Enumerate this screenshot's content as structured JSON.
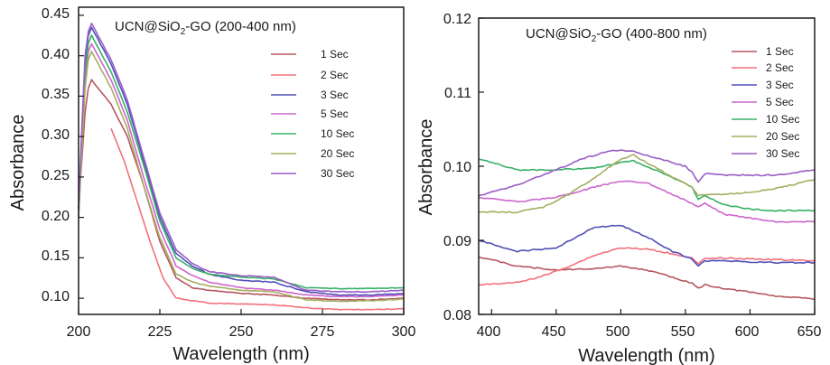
{
  "chart_data": [
    {
      "type": "line",
      "title_main": "UCN@SiO",
      "title_sub": "2",
      "title_tail": "-GO (200-400 nm)",
      "xlabel": "Wavelength (nm)",
      "ylabel": "Absorbance",
      "xlim": [
        200,
        300
      ],
      "ylim": [
        0.08,
        0.46
      ],
      "xticks": [
        200,
        225,
        250,
        275,
        300
      ],
      "yticks": [
        0.1,
        0.15,
        0.2,
        0.25,
        0.3,
        0.35,
        0.4,
        0.45
      ],
      "xtick_labels": [
        "200",
        "225",
        "250",
        "275",
        "300"
      ],
      "ytick_labels": [
        "0.10",
        "0.15",
        "0.20",
        "0.25",
        "0.30",
        "0.35",
        "0.40",
        "0.45"
      ],
      "legend_position": "top-right",
      "grid": false,
      "series": [
        {
          "name": "1 Sec",
          "color": "#b5575f",
          "x": [
            200,
            201,
            202,
            203,
            204,
            206,
            210,
            215,
            220,
            225,
            230,
            235,
            240,
            250,
            260,
            270,
            280,
            290,
            300
          ],
          "y": [
            0.22,
            0.27,
            0.33,
            0.36,
            0.37,
            0.36,
            0.34,
            0.3,
            0.24,
            0.17,
            0.125,
            0.113,
            0.11,
            0.106,
            0.104,
            0.1,
            0.098,
            0.098,
            0.1
          ]
        },
        {
          "name": "2 Sec",
          "color": "#f2707d",
          "x": [
            210,
            214,
            218,
            222,
            226,
            230,
            235,
            240,
            250,
            260,
            270,
            280,
            290,
            300
          ],
          "y": [
            0.31,
            0.27,
            0.22,
            0.17,
            0.125,
            0.1,
            0.097,
            0.094,
            0.093,
            0.092,
            0.088,
            0.086,
            0.086,
            0.087
          ]
        },
        {
          "name": "3 Sec",
          "color": "#5050b8",
          "x": [
            200,
            201,
            202,
            203,
            204,
            206,
            210,
            215,
            220,
            225,
            230,
            235,
            240,
            250,
            260,
            270,
            280,
            290,
            300
          ],
          "y": [
            0.21,
            0.3,
            0.39,
            0.425,
            0.435,
            0.42,
            0.39,
            0.34,
            0.27,
            0.2,
            0.155,
            0.14,
            0.13,
            0.122,
            0.12,
            0.108,
            0.104,
            0.104,
            0.106
          ]
        },
        {
          "name": "5 Sec",
          "color": "#cc66cc",
          "x": [
            200,
            201,
            202,
            203,
            204,
            206,
            210,
            215,
            220,
            225,
            230,
            235,
            240,
            250,
            260,
            270,
            280,
            290,
            300
          ],
          "y": [
            0.21,
            0.29,
            0.37,
            0.405,
            0.415,
            0.4,
            0.37,
            0.32,
            0.25,
            0.185,
            0.14,
            0.128,
            0.12,
            0.113,
            0.11,
            0.104,
            0.102,
            0.102,
            0.104
          ]
        },
        {
          "name": "10 Sec",
          "color": "#38b068",
          "x": [
            200,
            201,
            202,
            203,
            204,
            206,
            210,
            215,
            220,
            225,
            230,
            235,
            240,
            250,
            260,
            270,
            280,
            290,
            300
          ],
          "y": [
            0.2,
            0.29,
            0.38,
            0.415,
            0.425,
            0.41,
            0.38,
            0.33,
            0.265,
            0.195,
            0.15,
            0.137,
            0.13,
            0.126,
            0.124,
            0.113,
            0.112,
            0.112,
            0.113
          ]
        },
        {
          "name": "20 Sec",
          "color": "#a6ad5f",
          "x": [
            200,
            201,
            202,
            203,
            204,
            206,
            210,
            215,
            220,
            225,
            230,
            235,
            240,
            250,
            260,
            270,
            280,
            290,
            300
          ],
          "y": [
            0.2,
            0.28,
            0.36,
            0.395,
            0.405,
            0.39,
            0.36,
            0.31,
            0.24,
            0.175,
            0.13,
            0.12,
            0.115,
            0.11,
            0.108,
            0.098,
            0.096,
            0.097,
            0.099
          ]
        },
        {
          "name": "30 Sec",
          "color": "#9a5cc6",
          "x": [
            200,
            201,
            202,
            203,
            204,
            206,
            210,
            215,
            220,
            225,
            230,
            235,
            240,
            250,
            260,
            270,
            280,
            290,
            300
          ],
          "y": [
            0.21,
            0.31,
            0.4,
            0.43,
            0.44,
            0.425,
            0.395,
            0.345,
            0.275,
            0.205,
            0.16,
            0.143,
            0.133,
            0.128,
            0.126,
            0.11,
            0.108,
            0.108,
            0.11
          ]
        }
      ]
    },
    {
      "type": "line",
      "title_main": "UCN@SiO",
      "title_sub": "2",
      "title_tail": "-GO (400-800 nm)",
      "xlabel": "Wavelength (nm)",
      "ylabel": "Absorbance",
      "xlim": [
        390,
        650
      ],
      "ylim": [
        0.08,
        0.12
      ],
      "xticks": [
        400,
        450,
        500,
        550,
        600,
        650
      ],
      "yticks": [
        0.08,
        0.09,
        0.1,
        0.11,
        0.12
      ],
      "xtick_labels": [
        "400",
        "450",
        "500",
        "550",
        "600",
        "650"
      ],
      "ytick_labels": [
        "0.08",
        "0.09",
        "0.10",
        "0.11",
        "0.12"
      ],
      "legend_position": "top-right",
      "grid": false,
      "series": [
        {
          "name": "1 Sec",
          "color": "#b5575f",
          "x": [
            390,
            420,
            450,
            480,
            500,
            520,
            540,
            555,
            560,
            565,
            580,
            600,
            620,
            640,
            650
          ],
          "y": [
            0.0878,
            0.0865,
            0.086,
            0.0862,
            0.0865,
            0.086,
            0.085,
            0.0842,
            0.0835,
            0.084,
            0.0835,
            0.083,
            0.0825,
            0.0822,
            0.082
          ]
        },
        {
          "name": "2 Sec",
          "color": "#f2707d",
          "x": [
            390,
            420,
            440,
            460,
            480,
            500,
            520,
            540,
            555,
            560,
            565,
            580,
            600,
            620,
            650
          ],
          "y": [
            0.084,
            0.0843,
            0.0852,
            0.0865,
            0.088,
            0.089,
            0.0888,
            0.0882,
            0.0876,
            0.0868,
            0.0875,
            0.0876,
            0.0875,
            0.0874,
            0.0872
          ]
        },
        {
          "name": "3 Sec",
          "color": "#5050b8",
          "x": [
            390,
            420,
            450,
            480,
            500,
            520,
            540,
            555,
            560,
            565,
            580,
            600,
            620,
            650
          ],
          "y": [
            0.09,
            0.0885,
            0.089,
            0.0918,
            0.092,
            0.0905,
            0.0885,
            0.0875,
            0.0865,
            0.0872,
            0.0872,
            0.0871,
            0.087,
            0.087
          ]
        },
        {
          "name": "5 Sec",
          "color": "#cc66cc",
          "x": [
            390,
            420,
            450,
            480,
            500,
            520,
            540,
            555,
            560,
            565,
            580,
            600,
            620,
            650
          ],
          "y": [
            0.0958,
            0.0952,
            0.0958,
            0.0972,
            0.098,
            0.0978,
            0.0962,
            0.095,
            0.0945,
            0.095,
            0.0935,
            0.093,
            0.0925,
            0.0925
          ]
        },
        {
          "name": "10 Sec",
          "color": "#38b068",
          "x": [
            390,
            420,
            450,
            480,
            500,
            510,
            520,
            540,
            555,
            560,
            565,
            580,
            600,
            620,
            650
          ],
          "y": [
            0.101,
            0.0995,
            0.0995,
            0.0998,
            0.1005,
            0.1007,
            0.1,
            0.0985,
            0.0972,
            0.0955,
            0.096,
            0.0948,
            0.0942,
            0.094,
            0.094
          ]
        },
        {
          "name": "20 Sec",
          "color": "#a6ad5f",
          "x": [
            390,
            420,
            440,
            460,
            480,
            500,
            510,
            520,
            540,
            555,
            560,
            565,
            580,
            600,
            620,
            650
          ],
          "y": [
            0.0938,
            0.0938,
            0.0945,
            0.0962,
            0.0985,
            0.101,
            0.1015,
            0.1005,
            0.0985,
            0.0972,
            0.096,
            0.0962,
            0.0962,
            0.0965,
            0.097,
            0.0982
          ]
        },
        {
          "name": "30 Sec",
          "color": "#9a5cc6",
          "x": [
            390,
            420,
            450,
            470,
            490,
            500,
            510,
            530,
            550,
            555,
            560,
            565,
            580,
            600,
            620,
            650
          ],
          "y": [
            0.096,
            0.0975,
            0.0995,
            0.101,
            0.102,
            0.1022,
            0.102,
            0.101,
            0.1,
            0.0992,
            0.0978,
            0.099,
            0.0988,
            0.0988,
            0.0988,
            0.0995
          ]
        }
      ]
    }
  ]
}
